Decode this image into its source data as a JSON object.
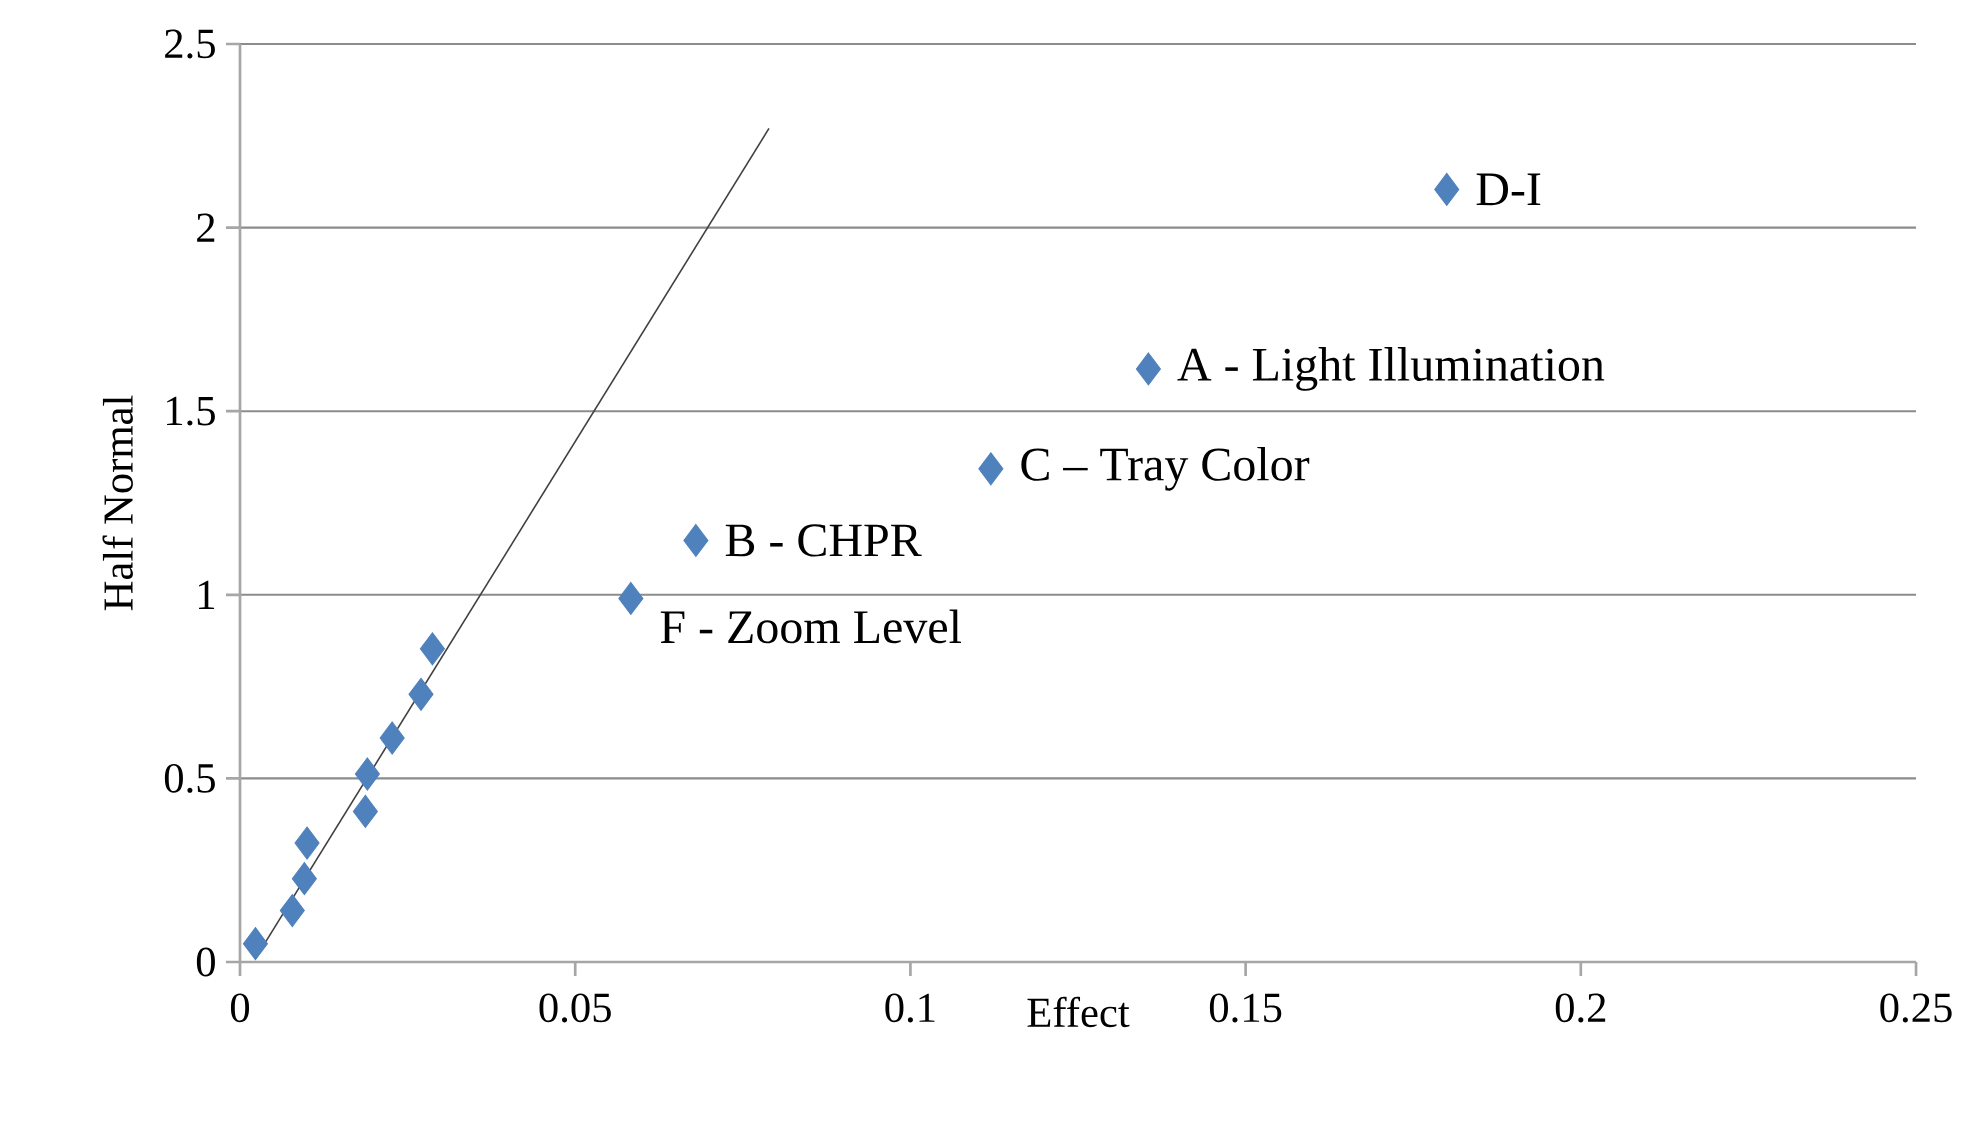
{
  "chart_data": {
    "type": "scatter",
    "xlabel": "Effect",
    "ylabel": "Half Normal",
    "xlim": [
      0,
      0.25
    ],
    "ylim": [
      0,
      2.5
    ],
    "xticks": [
      0,
      0.05,
      0.1,
      0.15,
      0.2,
      0.25
    ],
    "yticks": [
      0,
      0.5,
      1,
      1.5,
      2,
      2.5
    ],
    "grid": "y",
    "marker": "diamond",
    "series": [
      {
        "type": "line",
        "color": "#404040",
        "marker": "none",
        "line_style": "solid",
        "x": [
          0.0023,
          0.0789
        ],
        "values": [
          0.01,
          2.27
        ]
      },
      {
        "color": "#4f81bd",
        "x": [
          0.0023,
          0.0078,
          0.0096,
          0.01,
          0.0187,
          0.019,
          0.0227,
          0.027,
          0.0287,
          0.0583,
          0.068,
          0.112,
          0.1355,
          0.18
        ],
        "values": [
          0.05,
          0.14,
          0.227,
          0.324,
          0.41,
          0.512,
          0.61,
          0.729,
          0.853,
          0.99,
          1.148,
          1.343,
          1.615,
          2.104
        ]
      }
    ],
    "annotations": [
      {
        "text": "D-I",
        "x": 0.18,
        "y": 2.104
      },
      {
        "text": "A - Light Illumination",
        "x": 0.1355,
        "y": 1.615
      },
      {
        "text": "C – Tray Color",
        "x": 0.112,
        "y": 1.343
      },
      {
        "text": "B - CHPR",
        "x": 0.068,
        "y": 1.148
      },
      {
        "text": "F - Zoom Level",
        "x": 0.0583,
        "y": 0.99
      }
    ]
  }
}
